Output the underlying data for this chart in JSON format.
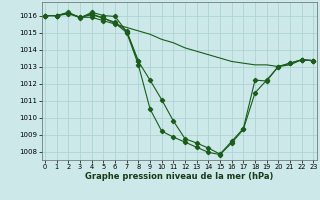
{
  "title": "Graphe pression niveau de la mer (hPa)",
  "bg_color": "#cce8e8",
  "line_color": "#1a5c1a",
  "ylim": [
    1007.5,
    1016.8
  ],
  "xlim": [
    -0.3,
    23.3
  ],
  "yticks": [
    1008,
    1009,
    1010,
    1011,
    1012,
    1013,
    1014,
    1015,
    1016
  ],
  "xticks": [
    0,
    1,
    2,
    3,
    4,
    5,
    6,
    7,
    8,
    9,
    10,
    11,
    12,
    13,
    14,
    15,
    16,
    17,
    18,
    19,
    20,
    21,
    22,
    23
  ],
  "series": [
    {
      "x": [
        0,
        1,
        2,
        3,
        4,
        5,
        6,
        7,
        8,
        9,
        10,
        11,
        12,
        13,
        14,
        15,
        16,
        17,
        18,
        19,
        20,
        21,
        22,
        23
      ],
      "y": [
        1016.0,
        1016.0,
        1016.1,
        1015.9,
        1015.9,
        1015.7,
        1015.5,
        1015.3,
        1015.1,
        1014.9,
        1014.6,
        1014.4,
        1014.1,
        1013.9,
        1013.7,
        1013.5,
        1013.3,
        1013.2,
        1013.1,
        1013.1,
        1013.0,
        1013.1,
        1013.4,
        1013.35
      ],
      "markers": [
        0,
        1,
        2,
        4,
        5,
        6,
        22,
        23
      ]
    },
    {
      "x": [
        0,
        1,
        2,
        3,
        4,
        5,
        6,
        7,
        8,
        9,
        10,
        11,
        12,
        13,
        14,
        15,
        16,
        17,
        18,
        19,
        20,
        21,
        22,
        23
      ],
      "y": [
        1016.0,
        1016.0,
        1016.15,
        1015.9,
        1016.05,
        1015.85,
        1015.6,
        1015.1,
        1013.3,
        1012.2,
        1011.05,
        1009.8,
        1008.75,
        1008.5,
        1008.2,
        1007.85,
        1008.6,
        1009.35,
        1012.2,
        1012.15,
        1013.0,
        1013.2,
        1013.4,
        1013.35
      ],
      "markers": [
        0,
        1,
        2,
        3,
        4,
        5,
        6,
        7,
        8,
        9,
        10,
        11,
        12,
        13,
        14,
        15,
        16,
        17,
        18,
        19,
        20,
        21,
        22,
        23
      ]
    },
    {
      "x": [
        0,
        1,
        2,
        3,
        4,
        5,
        6,
        7,
        8,
        9,
        10,
        11,
        12,
        13,
        14,
        15,
        16,
        17,
        18,
        19,
        20,
        21,
        22,
        23
      ],
      "y": [
        1016.0,
        1016.0,
        1016.15,
        1015.9,
        1016.1,
        1015.85,
        1015.55,
        1015.0,
        1013.1,
        1010.5,
        1009.2,
        1008.85,
        1008.55,
        1008.25,
        1007.95,
        1007.82,
        1008.5,
        1009.3,
        1011.45,
        1012.2,
        1013.0,
        1013.2,
        1013.4,
        1013.35
      ],
      "markers": [
        0,
        1,
        2,
        3,
        4,
        5,
        6,
        7,
        8,
        9,
        10,
        11,
        12,
        13,
        14,
        15,
        16,
        17,
        18,
        19,
        20,
        21,
        22,
        23
      ]
    },
    {
      "x": [
        0,
        1,
        2,
        3,
        4,
        5,
        6,
        7,
        8,
        9,
        10,
        11,
        12,
        13,
        14,
        15
      ],
      "y": [
        1016.0,
        1016.0,
        1016.1,
        1015.85,
        1016.2,
        1016.05,
        1015.95,
        1015.05,
        1013.3,
        1010.9,
        1009.7,
        1009.05,
        1008.6,
        1008.35,
        1008.05,
        1013.3
      ],
      "markers": [
        0,
        1,
        2,
        3,
        4,
        5,
        6,
        7,
        8
      ]
    }
  ]
}
